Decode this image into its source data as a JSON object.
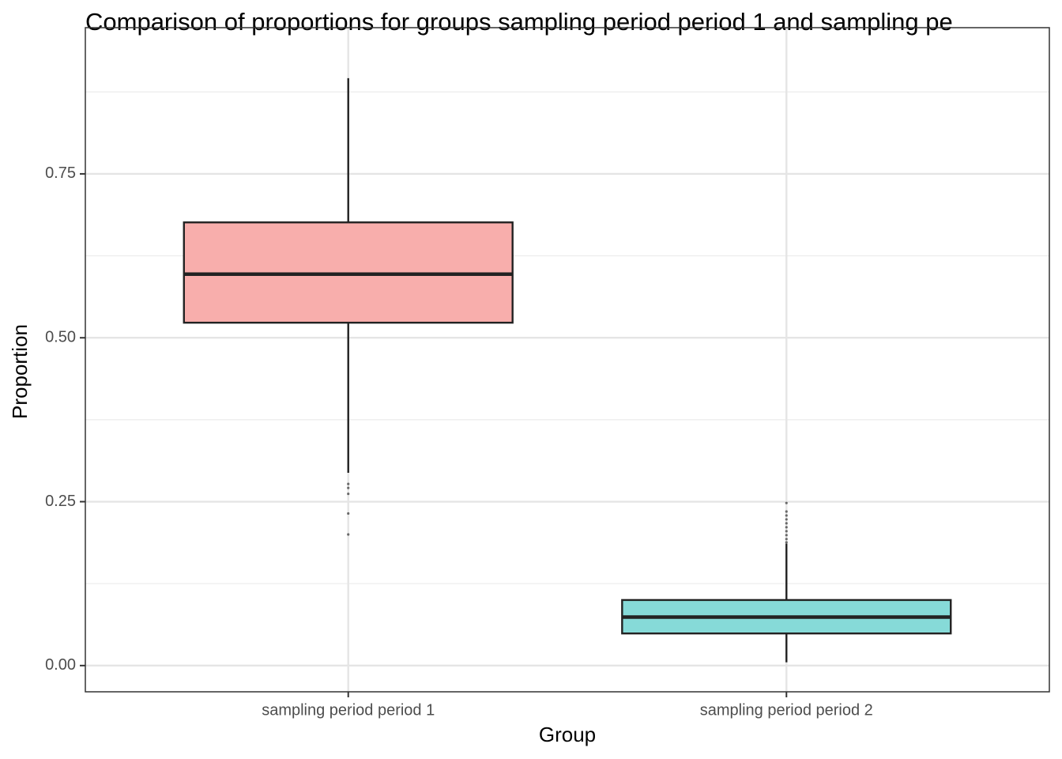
{
  "chart_data": {
    "type": "box",
    "title": "Comparison of proportions for groups sampling period period 1 and sampling pe",
    "x_label": "Group",
    "y_label": "Proportion",
    "categories": [
      "sampling period period 1",
      "sampling period period 2"
    ],
    "boxes": [
      {
        "color": "#f8aeac",
        "min": 0.294,
        "q1": 0.523,
        "median": 0.597,
        "q3": 0.676,
        "max": 0.896,
        "outliers": [
          0.277,
          0.271,
          0.262,
          0.232,
          0.2
        ]
      },
      {
        "color": "#86dad8",
        "min": 0.005,
        "q1": 0.049,
        "median": 0.074,
        "q3": 0.1,
        "max": 0.186,
        "outliers": [
          0.248,
          0.235,
          0.229,
          0.223,
          0.217,
          0.211,
          0.205,
          0.199,
          0.193,
          0.188
        ]
      }
    ],
    "ylim": [
      -0.04,
      0.973
    ],
    "yticks": [
      {
        "value": 0,
        "label": "0.00"
      },
      {
        "value": 0.25,
        "label": "0.25"
      },
      {
        "value": 0.5,
        "label": "0.50"
      },
      {
        "value": 0.75,
        "label": "0.75"
      }
    ],
    "minor_yticks": [
      0.125,
      0.375,
      0.625,
      0.875
    ],
    "grid": true
  }
}
